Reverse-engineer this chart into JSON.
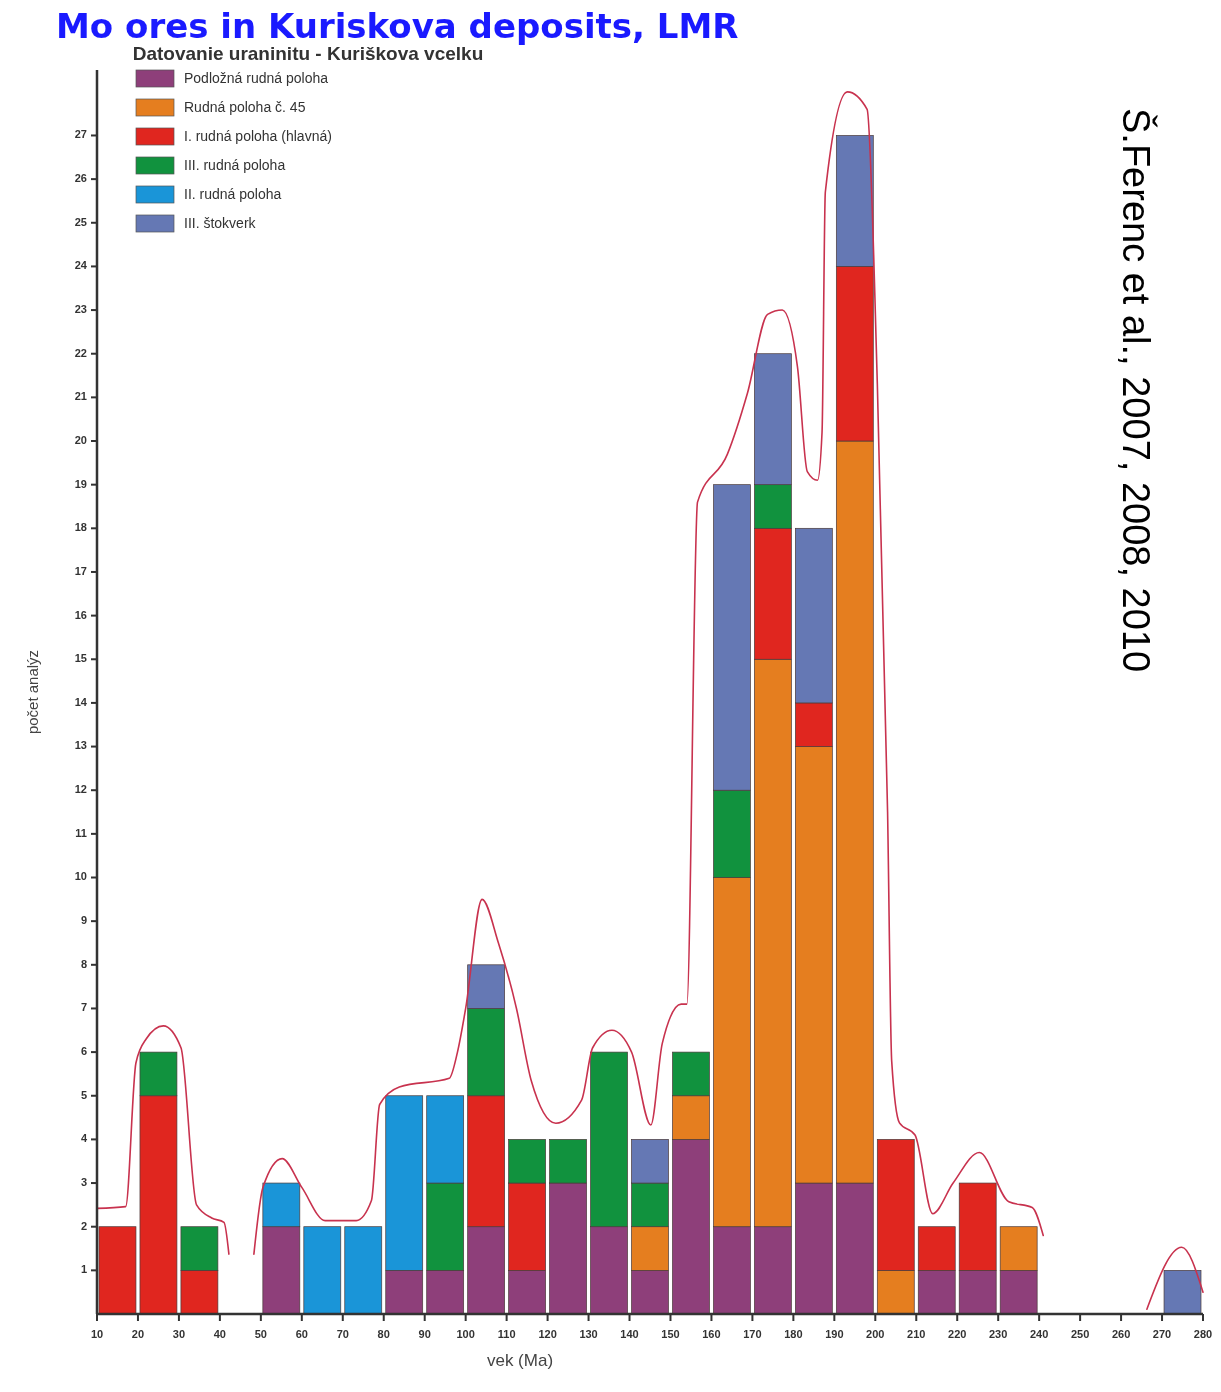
{
  "chart_data": {
    "type": "bar",
    "title": "Datovanie uraninitu - Kuriškova vcelku",
    "xlabel": "vek (Ma)",
    "ylabel": "počet analýz",
    "annotations": [
      "Mo ores in Kuriskova deposits, LMR",
      "Š.Ferenc et al., 2007, 2008, 2010"
    ],
    "x": [
      15,
      25,
      35,
      55,
      65,
      75,
      85,
      95,
      105,
      115,
      125,
      135,
      145,
      155,
      165,
      175,
      185,
      195,
      205,
      215,
      225,
      235,
      275
    ],
    "stacked": true,
    "legend": "top left",
    "grid": false,
    "xlim": [
      10,
      280
    ],
    "xticks": [
      10,
      20,
      30,
      40,
      50,
      60,
      70,
      80,
      90,
      100,
      110,
      120,
      130,
      140,
      150,
      160,
      170,
      180,
      190,
      200,
      210,
      220,
      230,
      240,
      250,
      260,
      270,
      280
    ],
    "ylim": [
      0,
      28.5
    ],
    "yticks": [
      1,
      2,
      3,
      4,
      5,
      6,
      7,
      8,
      9,
      10,
      11,
      12,
      13,
      14,
      15,
      16,
      17,
      18,
      19,
      20,
      21,
      22,
      23,
      24,
      25,
      26,
      27
    ],
    "series": [
      {
        "name": "Podložná rudná poloha",
        "color": "#8e3f7a",
        "values": [
          0,
          0,
          0,
          2,
          0,
          0,
          1,
          1,
          2,
          1,
          3,
          2,
          1,
          4,
          2,
          2,
          3,
          3,
          0,
          1,
          1,
          1,
          0
        ]
      },
      {
        "name": "Rudná poloha č. 45",
        "color": "#e57e1f",
        "values": [
          0,
          0,
          0,
          0,
          0,
          0,
          0,
          0,
          0,
          0,
          0,
          0,
          1,
          1,
          8,
          13,
          10,
          17,
          1,
          0,
          0,
          1,
          0
        ]
      },
      {
        "name": "I. rudná poloha (hlavná)",
        "color": "#e0261f",
        "values": [
          2,
          5,
          1,
          0,
          0,
          0,
          0,
          0,
          3,
          2,
          0,
          0,
          0,
          0,
          0,
          3,
          1,
          4,
          3,
          1,
          2,
          0,
          0
        ]
      },
      {
        "name": "III. rudná poloha",
        "color": "#11923e",
        "values": [
          0,
          1,
          1,
          0,
          0,
          0,
          0,
          2,
          2,
          1,
          1,
          4,
          1,
          1,
          2,
          1,
          0,
          0,
          0,
          0,
          0,
          0,
          0
        ]
      },
      {
        "name": "II. rudná poloha",
        "color": "#1a95d8",
        "values": [
          0,
          0,
          0,
          1,
          2,
          2,
          4,
          2,
          0,
          0,
          0,
          0,
          0,
          0,
          0,
          0,
          0,
          0,
          0,
          0,
          0,
          0,
          0
        ]
      },
      {
        "name": "III. štokverk",
        "color": "#6578b4",
        "values": [
          0,
          0,
          0,
          0,
          0,
          0,
          0,
          0,
          1,
          0,
          0,
          0,
          1,
          0,
          7,
          3,
          4,
          3,
          0,
          0,
          0,
          0,
          1
        ]
      },
      {
        "type": "line",
        "color": "#c8324e",
        "x": [
          10,
          17,
          19.5,
          22,
          26.2,
          30.5,
          34.3,
          38,
          41,
          42.2
        ],
        "values": [
          2.42,
          2.46,
          5.75,
          6.3,
          6.6,
          6.1,
          2.5,
          2.2,
          2.1,
          1.37
        ]
      },
      {
        "type": "line",
        "color": "#c8324e",
        "x": [
          48.3,
          50.5,
          55.2,
          60,
          65.7,
          73.3,
          77,
          79,
          83.8,
          96,
          98,
          100,
          104,
          108,
          112.4,
          116,
          122,
          128.3,
          131,
          135.7,
          140.5,
          145.2,
          148,
          152.6,
          154,
          156.6,
          163.9,
          168.8,
          173.7,
          177.3,
          181,
          183.4,
          185.9,
          187,
          187.8,
          193.2,
          198,
          200.5,
          203,
          204,
          205.9,
          209.7,
          214,
          219,
          225.4,
          232.6,
          238.3,
          241
        ],
        "values": [
          1.37,
          2.9,
          3.56,
          2.9,
          2.14,
          2.14,
          2.6,
          4.8,
          5.2,
          5.4,
          6,
          7,
          9.5,
          8.5,
          7,
          5.35,
          4.37,
          4.9,
          6.1,
          6.5,
          6,
          4.33,
          6.2,
          7.1,
          7.1,
          18.6,
          19.7,
          21.1,
          22.9,
          23,
          21.7,
          19.3,
          19.1,
          20.2,
          25.7,
          28,
          27.6,
          21.3,
          11.5,
          5.8,
          4.38,
          4.1,
          2.3,
          3.0,
          3.7,
          2.57,
          2.44,
          1.8
        ]
      },
      {
        "type": "line",
        "color": "#c8324e",
        "x": [
          266.3,
          274.8,
          280
        ],
        "values": [
          0.11,
          1.53,
          0.5
        ]
      }
    ]
  }
}
